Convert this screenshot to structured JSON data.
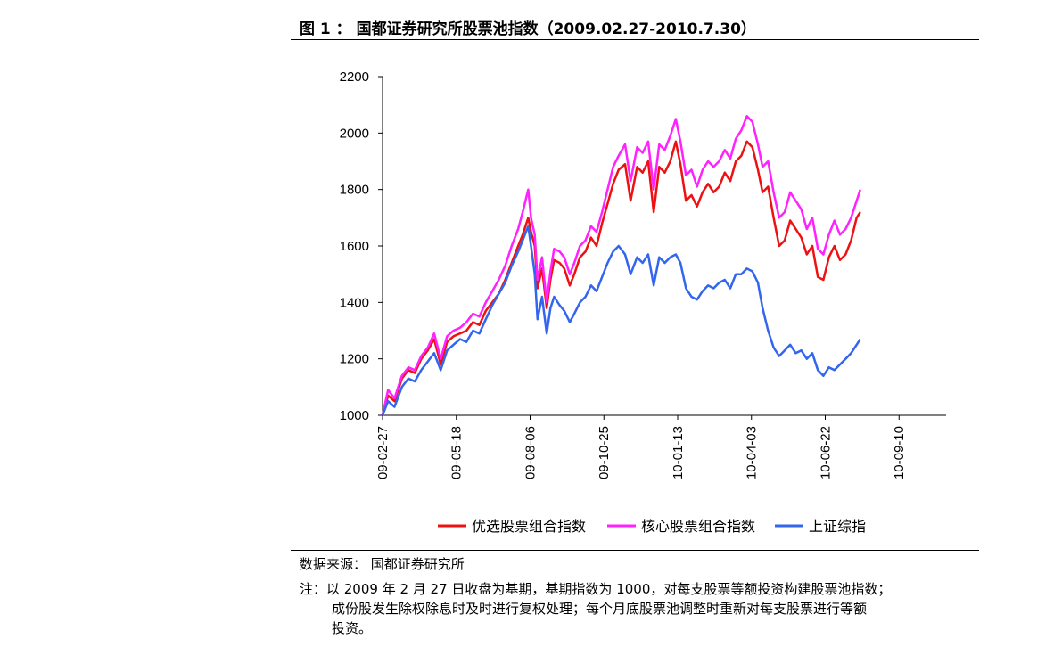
{
  "figure": {
    "title": "图 1 ： 国都证券研究所股票池指数（2009.02.27-2010.7.30）",
    "source": "数据来源： 国都证券研究所",
    "note_lines": [
      "注：以 2009 年 2 月 27 日收盘为基期，基期指数为 1000，对每支股票等额投资构建股票池指数；",
      "成份股发生除权除息时及时进行复权处理；每个月底股票池调整时重新对每支股票进行等额",
      "投资。"
    ]
  },
  "chart_data": {
    "type": "line",
    "title": "",
    "xlabel": "",
    "ylabel": "",
    "ylim": [
      1000,
      2200
    ],
    "yticks": [
      1000,
      1200,
      1400,
      1600,
      1800,
      2000,
      2200
    ],
    "xlim": [
      "2009-02-27",
      "2010-10-31"
    ],
    "xtick_labels": [
      "09-02-27",
      "09-05-18",
      "09-08-06",
      "09-10-25",
      "10-01-13",
      "10-04-03",
      "10-06-22",
      "10-09-10"
    ],
    "xtick_dates": [
      "2009-02-27",
      "2009-05-18",
      "2009-08-06",
      "2009-10-25",
      "2010-01-13",
      "2010-04-03",
      "2010-06-22",
      "2010-09-10"
    ],
    "grid": false,
    "legend": "bottom",
    "series": [
      {
        "name": "优选股票组合指数",
        "color": "#ee1111",
        "x": [
          "2009-02-27",
          "2009-03-05",
          "2009-03-12",
          "2009-03-20",
          "2009-03-27",
          "2009-04-03",
          "2009-04-10",
          "2009-04-17",
          "2009-04-24",
          "2009-05-01",
          "2009-05-08",
          "2009-05-15",
          "2009-05-22",
          "2009-05-29",
          "2009-06-05",
          "2009-06-12",
          "2009-06-19",
          "2009-06-26",
          "2009-07-03",
          "2009-07-10",
          "2009-07-17",
          "2009-07-24",
          "2009-07-29",
          "2009-08-04",
          "2009-08-07",
          "2009-08-11",
          "2009-08-14",
          "2009-08-19",
          "2009-08-24",
          "2009-08-28",
          "2009-09-01",
          "2009-09-07",
          "2009-09-12",
          "2009-09-18",
          "2009-09-23",
          "2009-09-29",
          "2009-10-05",
          "2009-10-11",
          "2009-10-17",
          "2009-10-23",
          "2009-10-29",
          "2009-11-04",
          "2009-11-10",
          "2009-11-17",
          "2009-11-23",
          "2009-11-30",
          "2009-12-06",
          "2009-12-12",
          "2009-12-18",
          "2009-12-24",
          "2009-12-30",
          "2010-01-05",
          "2010-01-11",
          "2010-01-16",
          "2010-01-22",
          "2010-01-28",
          "2010-02-03",
          "2010-02-09",
          "2010-02-15",
          "2010-02-21",
          "2010-02-27",
          "2010-03-05",
          "2010-03-11",
          "2010-03-17",
          "2010-03-23",
          "2010-03-29",
          "2010-04-04",
          "2010-04-10",
          "2010-04-15",
          "2010-04-21",
          "2010-04-27",
          "2010-05-03",
          "2010-05-09",
          "2010-05-15",
          "2010-05-21",
          "2010-05-27",
          "2010-06-02",
          "2010-06-08",
          "2010-06-14",
          "2010-06-20",
          "2010-06-26",
          "2010-07-02",
          "2010-07-08",
          "2010-07-14",
          "2010-07-20",
          "2010-07-26",
          "2010-07-30"
        ],
        "values": [
          1000,
          1070,
          1050,
          1130,
          1160,
          1150,
          1200,
          1230,
          1270,
          1180,
          1260,
          1280,
          1290,
          1300,
          1330,
          1320,
          1370,
          1400,
          1430,
          1480,
          1540,
          1600,
          1640,
          1700,
          1650,
          1600,
          1450,
          1520,
          1380,
          1480,
          1550,
          1540,
          1520,
          1460,
          1500,
          1560,
          1580,
          1630,
          1600,
          1680,
          1750,
          1820,
          1870,
          1890,
          1760,
          1880,
          1860,
          1900,
          1720,
          1880,
          1860,
          1900,
          1970,
          1890,
          1760,
          1780,
          1740,
          1790,
          1820,
          1790,
          1810,
          1860,
          1830,
          1900,
          1920,
          1970,
          1950,
          1870,
          1790,
          1810,
          1700,
          1600,
          1620,
          1690,
          1660,
          1630,
          1570,
          1600,
          1490,
          1480,
          1560,
          1600,
          1550,
          1570,
          1620,
          1700,
          1720
        ]
      },
      {
        "name": "核心股票组合指数",
        "color": "#ff22ff",
        "x": [
          "2009-02-27",
          "2009-03-05",
          "2009-03-12",
          "2009-03-20",
          "2009-03-27",
          "2009-04-03",
          "2009-04-10",
          "2009-04-17",
          "2009-04-24",
          "2009-05-01",
          "2009-05-08",
          "2009-05-15",
          "2009-05-22",
          "2009-05-29",
          "2009-06-05",
          "2009-06-12",
          "2009-06-19",
          "2009-06-26",
          "2009-07-03",
          "2009-07-10",
          "2009-07-17",
          "2009-07-24",
          "2009-07-29",
          "2009-08-04",
          "2009-08-07",
          "2009-08-11",
          "2009-08-14",
          "2009-08-19",
          "2009-08-24",
          "2009-08-28",
          "2009-09-01",
          "2009-09-07",
          "2009-09-12",
          "2009-09-18",
          "2009-09-23",
          "2009-09-29",
          "2009-10-05",
          "2009-10-11",
          "2009-10-17",
          "2009-10-23",
          "2009-10-29",
          "2009-11-04",
          "2009-11-10",
          "2009-11-17",
          "2009-11-23",
          "2009-11-30",
          "2009-12-06",
          "2009-12-12",
          "2009-12-18",
          "2009-12-24",
          "2009-12-30",
          "2010-01-05",
          "2010-01-11",
          "2010-01-16",
          "2010-01-22",
          "2010-01-28",
          "2010-02-03",
          "2010-02-09",
          "2010-02-15",
          "2010-02-21",
          "2010-02-27",
          "2010-03-05",
          "2010-03-11",
          "2010-03-17",
          "2010-03-23",
          "2010-03-29",
          "2010-04-04",
          "2010-04-10",
          "2010-04-15",
          "2010-04-21",
          "2010-04-27",
          "2010-05-03",
          "2010-05-09",
          "2010-05-15",
          "2010-05-21",
          "2010-05-27",
          "2010-06-02",
          "2010-06-08",
          "2010-06-14",
          "2010-06-20",
          "2010-06-26",
          "2010-07-02",
          "2010-07-08",
          "2010-07-14",
          "2010-07-20",
          "2010-07-26",
          "2010-07-30"
        ],
        "values": [
          1000,
          1090,
          1060,
          1140,
          1170,
          1160,
          1210,
          1240,
          1290,
          1200,
          1280,
          1300,
          1310,
          1330,
          1360,
          1350,
          1400,
          1440,
          1480,
          1530,
          1600,
          1660,
          1720,
          1800,
          1700,
          1640,
          1480,
          1560,
          1400,
          1510,
          1590,
          1580,
          1560,
          1500,
          1540,
          1600,
          1620,
          1670,
          1650,
          1720,
          1800,
          1880,
          1920,
          1960,
          1830,
          1950,
          1930,
          1970,
          1800,
          1960,
          1940,
          1990,
          2050,
          1970,
          1850,
          1870,
          1810,
          1870,
          1900,
          1880,
          1900,
          1940,
          1910,
          1980,
          2010,
          2060,
          2040,
          1960,
          1880,
          1900,
          1790,
          1700,
          1720,
          1790,
          1760,
          1730,
          1660,
          1700,
          1590,
          1570,
          1640,
          1690,
          1640,
          1660,
          1700,
          1760,
          1800
        ]
      },
      {
        "name": "上证综指",
        "color": "#3366ee",
        "x": [
          "2009-02-27",
          "2009-03-05",
          "2009-03-12",
          "2009-03-20",
          "2009-03-27",
          "2009-04-03",
          "2009-04-10",
          "2009-04-17",
          "2009-04-24",
          "2009-05-01",
          "2009-05-08",
          "2009-05-15",
          "2009-05-22",
          "2009-05-29",
          "2009-06-05",
          "2009-06-12",
          "2009-06-19",
          "2009-06-26",
          "2009-07-03",
          "2009-07-10",
          "2009-07-17",
          "2009-07-24",
          "2009-07-29",
          "2009-08-04",
          "2009-08-07",
          "2009-08-11",
          "2009-08-14",
          "2009-08-19",
          "2009-08-24",
          "2009-08-28",
          "2009-09-01",
          "2009-09-07",
          "2009-09-12",
          "2009-09-18",
          "2009-09-23",
          "2009-09-29",
          "2009-10-05",
          "2009-10-11",
          "2009-10-17",
          "2009-10-23",
          "2009-10-29",
          "2009-11-04",
          "2009-11-10",
          "2009-11-17",
          "2009-11-23",
          "2009-11-30",
          "2009-12-06",
          "2009-12-12",
          "2009-12-18",
          "2009-12-24",
          "2009-12-30",
          "2010-01-05",
          "2010-01-11",
          "2010-01-16",
          "2010-01-22",
          "2010-01-28",
          "2010-02-03",
          "2010-02-09",
          "2010-02-15",
          "2010-02-21",
          "2010-02-27",
          "2010-03-05",
          "2010-03-11",
          "2010-03-17",
          "2010-03-23",
          "2010-03-29",
          "2010-04-04",
          "2010-04-10",
          "2010-04-15",
          "2010-04-21",
          "2010-04-27",
          "2010-05-03",
          "2010-05-09",
          "2010-05-15",
          "2010-05-21",
          "2010-05-27",
          "2010-06-02",
          "2010-06-08",
          "2010-06-14",
          "2010-06-20",
          "2010-06-26",
          "2010-07-02",
          "2010-07-08",
          "2010-07-14",
          "2010-07-20",
          "2010-07-26",
          "2010-07-30"
        ],
        "values": [
          1000,
          1050,
          1030,
          1100,
          1130,
          1120,
          1160,
          1190,
          1220,
          1160,
          1230,
          1250,
          1270,
          1260,
          1300,
          1290,
          1340,
          1390,
          1430,
          1470,
          1530,
          1580,
          1620,
          1670,
          1600,
          1500,
          1340,
          1420,
          1290,
          1380,
          1420,
          1390,
          1370,
          1330,
          1360,
          1400,
          1420,
          1460,
          1440,
          1490,
          1540,
          1580,
          1600,
          1570,
          1500,
          1560,
          1540,
          1570,
          1460,
          1560,
          1540,
          1560,
          1570,
          1540,
          1450,
          1420,
          1410,
          1440,
          1460,
          1450,
          1470,
          1480,
          1450,
          1500,
          1500,
          1520,
          1510,
          1470,
          1380,
          1300,
          1240,
          1210,
          1230,
          1250,
          1220,
          1230,
          1200,
          1220,
          1160,
          1140,
          1170,
          1160,
          1180,
          1200,
          1220,
          1250,
          1270
        ]
      }
    ]
  }
}
